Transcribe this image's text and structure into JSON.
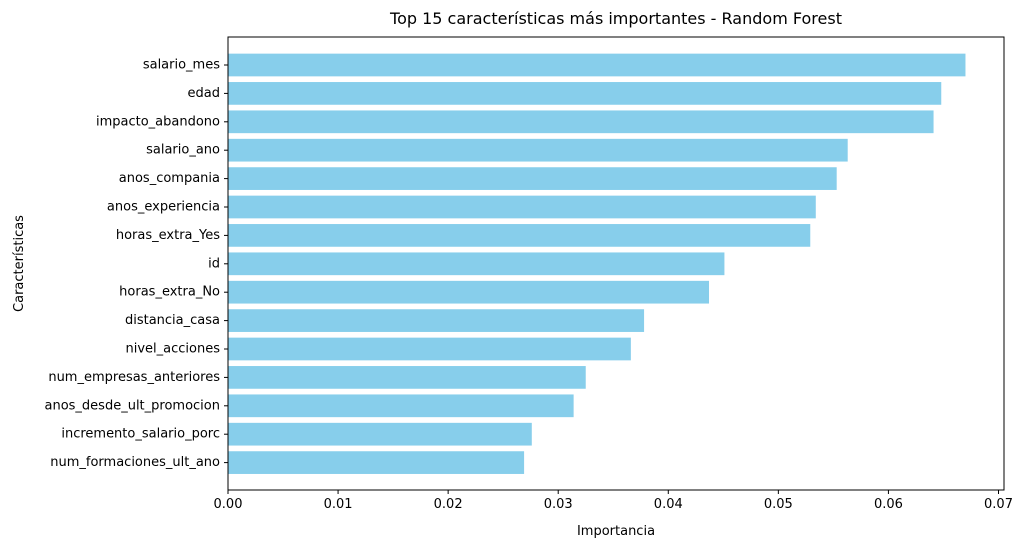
{
  "chart_data": {
    "type": "bar",
    "orientation": "horizontal",
    "title": "Top 15 características más importantes - Random Forest",
    "xlabel": "Importancia",
    "ylabel": "Características",
    "xlim": [
      0,
      0.0705
    ],
    "xticks": [
      0.0,
      0.01,
      0.02,
      0.03,
      0.04,
      0.05,
      0.06,
      0.07
    ],
    "xtick_labels": [
      "0.00",
      "0.01",
      "0.02",
      "0.03",
      "0.04",
      "0.05",
      "0.06",
      "0.07"
    ],
    "grid": false,
    "bar_color": "#87ceeb",
    "categories": [
      "salario_mes",
      "edad",
      "impacto_abandono",
      "salario_ano",
      "anos_compania",
      "anos_experiencia",
      "horas_extra_Yes",
      "id",
      "horas_extra_No",
      "distancia_casa",
      "nivel_acciones",
      "num_empresas_anteriores",
      "anos_desde_ult_promocion",
      "incremento_salario_porc",
      "num_formaciones_ult_ano"
    ],
    "values": [
      0.067,
      0.0648,
      0.0641,
      0.0563,
      0.0553,
      0.0534,
      0.0529,
      0.0451,
      0.0437,
      0.0378,
      0.0366,
      0.0325,
      0.0314,
      0.0276,
      0.0269
    ]
  }
}
